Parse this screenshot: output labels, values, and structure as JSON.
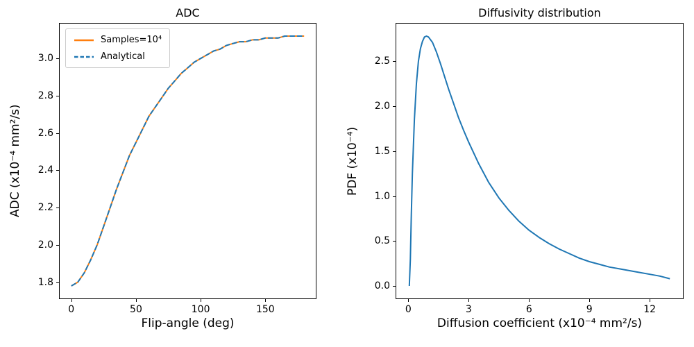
{
  "figure": {
    "background": "#ffffff",
    "text_color": "#000000"
  },
  "chart_data": [
    {
      "type": "line",
      "title": "ADC",
      "xlabel": "Flip-angle (deg)",
      "ylabel": "ADC (x10⁻⁴ mm²/s)",
      "xlim": [
        -9,
        189
      ],
      "ylim": [
        1.713,
        3.187
      ],
      "xticks": [
        0,
        50,
        100,
        150
      ],
      "xtick_labels": [
        "0",
        "50",
        "100",
        "150"
      ],
      "yticks": [
        1.8,
        2.0,
        2.2,
        2.4,
        2.6,
        2.8,
        3.0
      ],
      "ytick_labels": [
        "1.8",
        "2.0",
        "2.2",
        "2.4",
        "2.6",
        "2.8",
        "3.0"
      ],
      "grid": false,
      "legend": {
        "location": "upper left"
      },
      "series": [
        {
          "name": "Samples=10⁴",
          "color": "#ff7f0e",
          "style": "solid",
          "width": 2,
          "x": [
            0,
            5,
            10,
            15,
            20,
            25,
            30,
            35,
            40,
            45,
            50,
            55,
            60,
            65,
            70,
            75,
            80,
            85,
            90,
            95,
            100,
            105,
            110,
            115,
            120,
            125,
            130,
            135,
            140,
            145,
            150,
            155,
            160,
            165,
            170,
            175,
            180
          ],
          "y": [
            1.78,
            1.8,
            1.85,
            1.92,
            2.0,
            2.1,
            2.2,
            2.3,
            2.39,
            2.48,
            2.55,
            2.62,
            2.69,
            2.74,
            2.79,
            2.84,
            2.88,
            2.92,
            2.95,
            2.98,
            3.0,
            3.02,
            3.04,
            3.05,
            3.07,
            3.08,
            3.09,
            3.09,
            3.1,
            3.1,
            3.11,
            3.11,
            3.11,
            3.12,
            3.12,
            3.12,
            3.12
          ]
        },
        {
          "name": "Analytical",
          "color": "#1f77b4",
          "style": "dashed",
          "width": 2,
          "x": [
            0,
            5,
            10,
            15,
            20,
            25,
            30,
            35,
            40,
            45,
            50,
            55,
            60,
            65,
            70,
            75,
            80,
            85,
            90,
            95,
            100,
            105,
            110,
            115,
            120,
            125,
            130,
            135,
            140,
            145,
            150,
            155,
            160,
            165,
            170,
            175,
            180
          ],
          "y": [
            1.78,
            1.8,
            1.85,
            1.92,
            2.0,
            2.1,
            2.2,
            2.3,
            2.39,
            2.48,
            2.55,
            2.62,
            2.69,
            2.74,
            2.79,
            2.84,
            2.88,
            2.92,
            2.95,
            2.98,
            3.0,
            3.02,
            3.04,
            3.05,
            3.07,
            3.08,
            3.09,
            3.09,
            3.1,
            3.1,
            3.11,
            3.11,
            3.11,
            3.12,
            3.12,
            3.12,
            3.12
          ]
        }
      ]
    },
    {
      "type": "line",
      "title": "Diffusivity distribution",
      "xlabel": "Diffusion coefficient (x10⁻⁴ mm²/s)",
      "ylabel": "PDF (x10⁻⁴)",
      "xlim": [
        -0.6,
        13.65
      ],
      "ylim": [
        -0.139,
        2.919
      ],
      "xticks": [
        0,
        3,
        6,
        9,
        12
      ],
      "xtick_labels": [
        "0",
        "3",
        "6",
        "9",
        "12"
      ],
      "yticks": [
        0.0,
        0.5,
        1.0,
        1.5,
        2.0,
        2.5
      ],
      "ytick_labels": [
        "0.0",
        "0.5",
        "1.0",
        "1.5",
        "2.0",
        "2.5"
      ],
      "grid": false,
      "legend": null,
      "series": [
        {
          "name": "PDF",
          "color": "#1f77b4",
          "style": "solid",
          "width": 2,
          "x": [
            0.05,
            0.1,
            0.15,
            0.2,
            0.3,
            0.4,
            0.5,
            0.6,
            0.7,
            0.8,
            0.9,
            1.0,
            1.2,
            1.4,
            1.6,
            1.8,
            2.0,
            2.25,
            2.5,
            2.75,
            3.0,
            3.5,
            4.0,
            4.5,
            5.0,
            5.5,
            6.0,
            6.5,
            7.0,
            7.5,
            8.0,
            8.5,
            9.0,
            9.5,
            10.0,
            10.5,
            11.0,
            11.5,
            12.0,
            12.5,
            13.0
          ],
          "y": [
            0.0,
            0.3,
            0.8,
            1.25,
            1.85,
            2.25,
            2.5,
            2.64,
            2.72,
            2.77,
            2.78,
            2.77,
            2.71,
            2.6,
            2.47,
            2.33,
            2.19,
            2.03,
            1.87,
            1.73,
            1.6,
            1.36,
            1.15,
            0.98,
            0.84,
            0.72,
            0.62,
            0.54,
            0.47,
            0.41,
            0.36,
            0.31,
            0.27,
            0.24,
            0.21,
            0.19,
            0.17,
            0.15,
            0.13,
            0.11,
            0.08
          ]
        }
      ]
    }
  ]
}
